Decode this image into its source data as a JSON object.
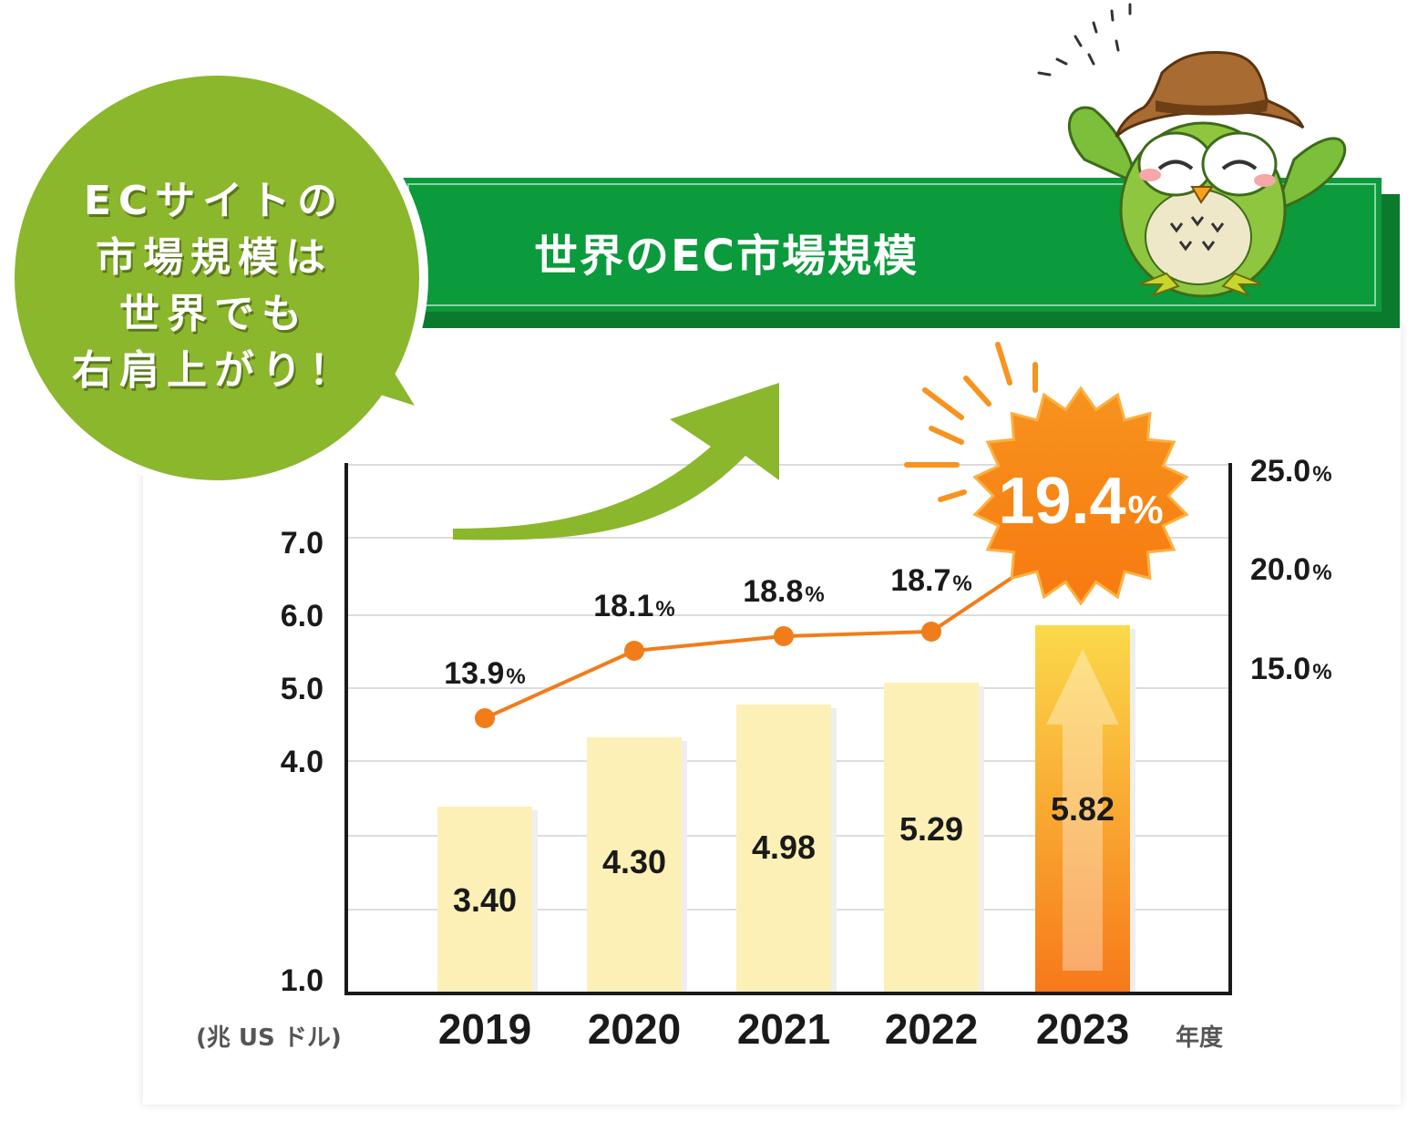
{
  "banner": {
    "title": "世界のEC市場規模"
  },
  "bubble": {
    "lines": [
      "ECサイトの",
      "市場規模は",
      "世界でも",
      "右肩上がり！"
    ]
  },
  "colors": {
    "green": "#0b9a3c",
    "lightgreen": "#8ab72c",
    "bar": "#fdf0b6",
    "highlight": "#f7931e",
    "line": "#f07d1a"
  },
  "chart_data": {
    "type": "bar",
    "categories": [
      "2019",
      "2020",
      "2021",
      "2022",
      "2023"
    ],
    "x_unit_label": "年度",
    "series": [
      {
        "type": "bar",
        "values": [
          3.4,
          4.3,
          4.98,
          5.29,
          5.82
        ],
        "labels": [
          "3.40",
          "4.30",
          "4.98",
          "5.29",
          "5.82"
        ]
      },
      {
        "type": "line",
        "axis": "right",
        "values": [
          13.9,
          18.1,
          18.8,
          18.7,
          19.4
        ],
        "labels": [
          "13.9",
          "18.1",
          "18.8",
          "18.7",
          "19.4"
        ]
      }
    ],
    "y_left": {
      "ticks": [
        "1.0",
        "4.0",
        "5.0",
        "6.0",
        "7.0"
      ],
      "unit": "(兆 US ドル)"
    },
    "y_right": {
      "ticks": [
        "15.0",
        "20.0",
        "25.0"
      ],
      "unit": "%"
    },
    "highlight": {
      "category": "2023",
      "label": "19.4"
    },
    "grid": true
  }
}
